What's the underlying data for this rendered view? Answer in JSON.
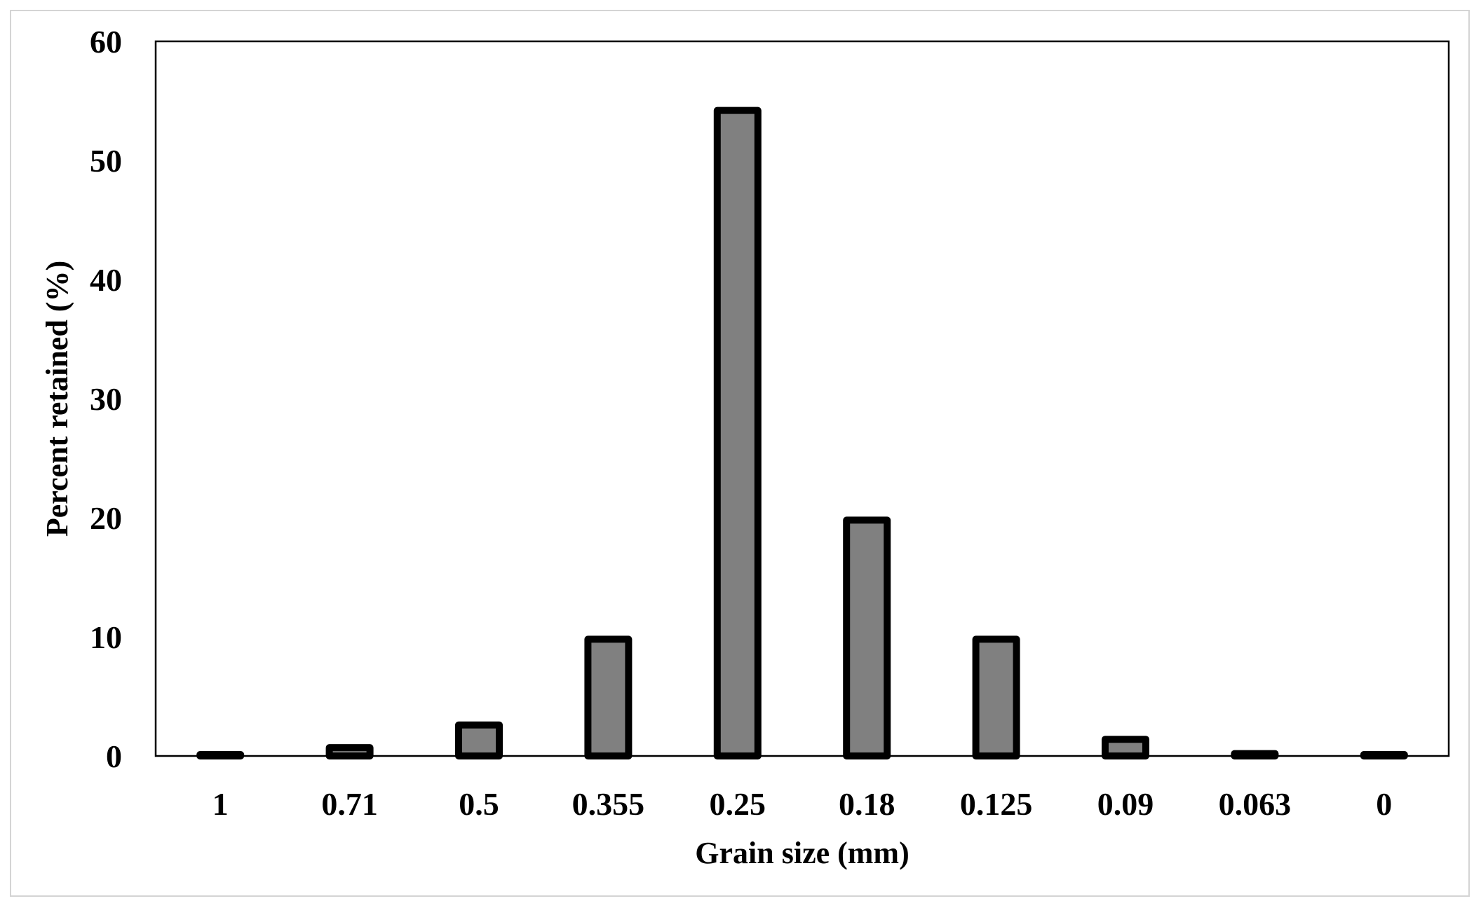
{
  "chart_data": {
    "type": "bar",
    "title": "",
    "xlabel": "Grain size (mm)",
    "ylabel": "Percent retained (%)",
    "categories": [
      "1",
      "0.71",
      "0.5",
      "0.355",
      "0.25",
      "0.18",
      "0.125",
      "0.09",
      "0.063",
      "0"
    ],
    "values": [
      0,
      0.7,
      2.6,
      9.8,
      54.2,
      19.8,
      9.8,
      1.4,
      0.2,
      0
    ],
    "ylim": [
      0,
      60
    ],
    "yticks": [
      0,
      10,
      20,
      30,
      40,
      50,
      60
    ],
    "grid": false,
    "colors": {
      "bar_fill": "#808080",
      "bar_stroke": "#000000",
      "axis": "#000000",
      "frame": "#d4d4d4"
    }
  }
}
